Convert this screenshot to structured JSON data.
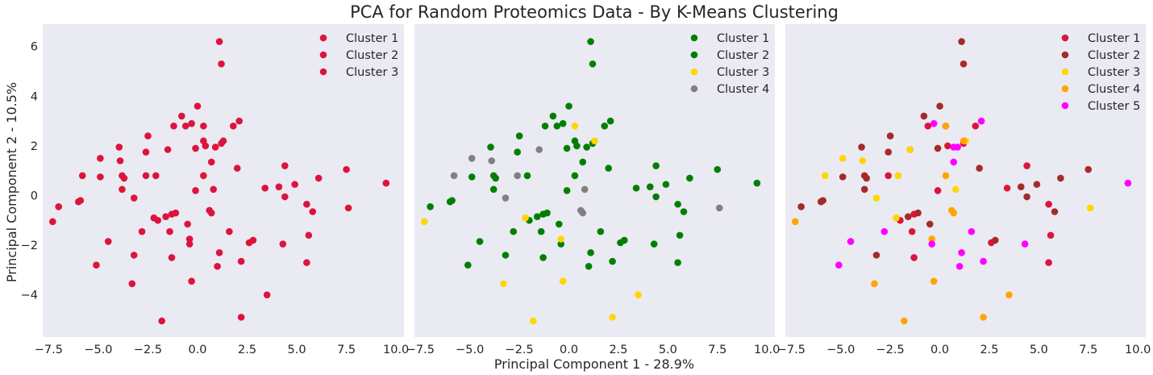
{
  "figure": {
    "suptitle": "PCA for Random Proteomics Data - By K-Means Clustering",
    "xlabel": "Principal Component 1 - 28.9%",
    "ylabel": "Principal Component 2 - 10.5%"
  },
  "colors": {
    "panel_background": "#eaeaf2",
    "text": "#262626"
  },
  "chart_data": [
    {
      "type": "scatter",
      "panel": 1,
      "xlim": [
        -7.8,
        10.4
      ],
      "ylim": [
        -5.7,
        6.9
      ],
      "xticks": [
        -7.5,
        -5.0,
        -2.5,
        0.0,
        2.5,
        5.0,
        7.5,
        10.0
      ],
      "yticks": [
        -4,
        -2,
        0,
        2,
        4,
        6
      ],
      "grid": false,
      "legend": "top-right",
      "series": [
        {
          "name": "Cluster 1",
          "color": "#dc143c",
          "points": [
            [
              1.1,
              6.2
            ],
            [
              1.2,
              5.3
            ],
            [
              0.0,
              3.6
            ],
            [
              -0.8,
              3.2
            ],
            [
              -2.5,
              2.4
            ],
            [
              -1.2,
              2.8
            ],
            [
              -0.3,
              2.9
            ],
            [
              -0.6,
              2.8
            ],
            [
              0.3,
              2.8
            ],
            [
              1.8,
              2.8
            ],
            [
              2.1,
              3.0
            ],
            [
              1.2,
              2.1
            ],
            [
              1.3,
              2.2
            ],
            [
              0.9,
              1.95
            ],
            [
              0.3,
              2.2
            ],
            [
              0.4,
              2.0
            ],
            [
              -0.1,
              1.9
            ],
            [
              0.7,
              1.35
            ],
            [
              -4.9,
              1.5
            ],
            [
              -2.6,
              1.75
            ],
            [
              -1.5,
              1.85
            ],
            [
              -3.95,
              1.95
            ],
            [
              -3.9,
              1.4
            ],
            [
              2.0,
              1.1
            ],
            [
              4.4,
              1.2
            ],
            [
              7.5,
              1.05
            ],
            [
              -5.8,
              0.8
            ],
            [
              -4.9,
              0.75
            ],
            [
              -2.6,
              0.8
            ],
            [
              -2.1,
              0.8
            ],
            [
              -3.8,
              0.8
            ],
            [
              -3.7,
              0.7
            ],
            [
              0.3,
              0.8
            ],
            [
              -0.1,
              0.2
            ],
            [
              0.8,
              0.25
            ],
            [
              3.4,
              0.3
            ],
            [
              4.1,
              0.35
            ],
            [
              4.9,
              0.45
            ],
            [
              6.1,
              0.7
            ],
            [
              9.5,
              0.5
            ],
            [
              -3.8,
              0.25
            ],
            [
              -3.2,
              -0.1
            ],
            [
              4.4,
              -0.05
            ],
            [
              -5.9,
              -0.2
            ],
            [
              -6.0,
              -0.25
            ],
            [
              -7.0,
              -0.45
            ],
            [
              -7.3,
              -1.05
            ],
            [
              5.5,
              -0.35
            ],
            [
              5.8,
              -0.65
            ],
            [
              7.6,
              -0.5
            ],
            [
              0.6,
              -0.6
            ],
            [
              0.7,
              -0.7
            ],
            [
              -1.1,
              -0.7
            ],
            [
              -1.3,
              -0.75
            ],
            [
              -2.2,
              -0.9
            ],
            [
              -2.0,
              -1.0
            ],
            [
              -1.6,
              -0.85
            ],
            [
              -0.5,
              -1.15
            ],
            [
              1.6,
              -1.45
            ],
            [
              2.8,
              -1.8
            ],
            [
              2.6,
              -1.9
            ],
            [
              -1.4,
              -1.45
            ],
            [
              -2.8,
              -1.45
            ],
            [
              -0.4,
              -1.75
            ],
            [
              -0.4,
              -1.95
            ],
            [
              -4.5,
              -1.85
            ],
            [
              4.3,
              -1.95
            ],
            [
              5.6,
              -1.6
            ],
            [
              -1.3,
              -2.5
            ],
            [
              -3.2,
              -2.4
            ],
            [
              1.1,
              -2.3
            ],
            [
              2.2,
              -2.65
            ],
            [
              5.5,
              -2.7
            ],
            [
              -5.1,
              -2.8
            ],
            [
              1.0,
              -2.85
            ],
            [
              -3.3,
              -3.55
            ],
            [
              -0.3,
              -3.45
            ],
            [
              3.5,
              -4.0
            ],
            [
              2.2,
              -4.9
            ],
            [
              -1.8,
              -5.05
            ]
          ]
        },
        {
          "name": "Cluster 2",
          "color": "#dc143c",
          "points": []
        },
        {
          "name": "Cluster 3",
          "color": "#dc143c",
          "points": []
        }
      ]
    },
    {
      "type": "scatter",
      "panel": 2,
      "xlim": [
        -7.8,
        10.4
      ],
      "ylim": [
        -5.7,
        6.9
      ],
      "xticks": [
        -7.5,
        -5.0,
        -2.5,
        0.0,
        2.5,
        5.0,
        7.5,
        10.0
      ],
      "yticks": [
        -4,
        -2,
        0,
        2,
        4,
        6
      ],
      "grid": false,
      "legend": "top-right",
      "series": [
        {
          "name": "Cluster 1",
          "color": "#008000",
          "points": [
            [
              1.1,
              6.2
            ],
            [
              1.2,
              5.3
            ],
            [
              0.0,
              3.6
            ],
            [
              -0.8,
              3.2
            ],
            [
              -2.5,
              2.4
            ],
            [
              -1.2,
              2.8
            ],
            [
              -0.3,
              2.9
            ],
            [
              -0.6,
              2.8
            ],
            [
              1.8,
              2.8
            ],
            [
              2.1,
              3.0
            ],
            [
              1.2,
              2.1
            ],
            [
              0.9,
              1.95
            ],
            [
              0.3,
              2.2
            ],
            [
              0.4,
              2.0
            ],
            [
              -0.1,
              1.9
            ],
            [
              0.7,
              1.35
            ],
            [
              -2.6,
              1.75
            ],
            [
              -3.95,
              1.95
            ],
            [
              2.0,
              1.1
            ],
            [
              4.4,
              1.2
            ],
            [
              7.5,
              1.05
            ],
            [
              -4.9,
              0.75
            ],
            [
              -2.1,
              0.8
            ],
            [
              -3.8,
              0.8
            ],
            [
              -3.7,
              0.7
            ],
            [
              0.3,
              0.8
            ],
            [
              -0.1,
              0.2
            ],
            [
              3.4,
              0.3
            ],
            [
              4.1,
              0.35
            ],
            [
              4.9,
              0.45
            ],
            [
              6.1,
              0.7
            ],
            [
              9.5,
              0.5
            ],
            [
              -3.8,
              0.25
            ],
            [
              4.4,
              -0.05
            ],
            [
              -5.9,
              -0.2
            ],
            [
              -6.0,
              -0.25
            ],
            [
              -7.0,
              -0.45
            ],
            [
              5.5,
              -0.35
            ],
            [
              5.8,
              -0.65
            ],
            [
              -1.1,
              -0.7
            ],
            [
              -1.3,
              -0.75
            ],
            [
              -2.0,
              -1.0
            ],
            [
              -1.6,
              -0.85
            ],
            [
              -0.5,
              -1.15
            ],
            [
              1.6,
              -1.45
            ],
            [
              2.8,
              -1.8
            ],
            [
              2.6,
              -1.9
            ],
            [
              -1.4,
              -1.45
            ],
            [
              -2.8,
              -1.45
            ],
            [
              -4.5,
              -1.85
            ],
            [
              4.3,
              -1.95
            ],
            [
              5.6,
              -1.6
            ],
            [
              -1.3,
              -2.5
            ],
            [
              -3.2,
              -2.4
            ],
            [
              1.1,
              -2.3
            ],
            [
              2.2,
              -2.65
            ],
            [
              5.5,
              -2.7
            ],
            [
              -5.1,
              -2.8
            ],
            [
              1.0,
              -2.85
            ],
            [
              -0.4,
              -1.95
            ]
          ]
        },
        {
          "name": "Cluster 2",
          "color": "#008000",
          "points": []
        },
        {
          "name": "Cluster 3",
          "color": "#ffd700",
          "points": [
            [
              0.3,
              2.8
            ],
            [
              1.3,
              2.2
            ],
            [
              -7.3,
              -1.05
            ],
            [
              -2.2,
              -0.9
            ],
            [
              -0.4,
              -1.75
            ],
            [
              -3.3,
              -3.55
            ],
            [
              -0.3,
              -3.45
            ],
            [
              3.5,
              -4.0
            ],
            [
              2.2,
              -4.9
            ],
            [
              -1.8,
              -5.05
            ]
          ]
        },
        {
          "name": "Cluster 4",
          "color": "#808080",
          "points": [
            [
              -4.9,
              1.5
            ],
            [
              -1.5,
              1.85
            ],
            [
              -3.9,
              1.4
            ],
            [
              -5.8,
              0.8
            ],
            [
              -2.6,
              0.8
            ],
            [
              0.8,
              0.25
            ],
            [
              -3.2,
              -0.1
            ],
            [
              7.6,
              -0.5
            ],
            [
              0.6,
              -0.6
            ],
            [
              0.7,
              -0.7
            ]
          ]
        }
      ]
    },
    {
      "type": "scatter",
      "panel": 3,
      "xlim": [
        -7.8,
        10.4
      ],
      "ylim": [
        -5.7,
        6.9
      ],
      "xticks": [
        -7.5,
        -5.0,
        -2.5,
        0.0,
        2.5,
        5.0,
        7.5,
        10.0
      ],
      "yticks": [
        -4,
        -2,
        0,
        2,
        4,
        6
      ],
      "grid": false,
      "legend": "top-right",
      "series": [
        {
          "name": "Cluster 1",
          "color": "#dc143c",
          "points": [
            [
              -0.6,
              2.8
            ],
            [
              0.3,
              2.8
            ],
            [
              1.8,
              2.8
            ],
            [
              1.2,
              2.1
            ],
            [
              -1.5,
              1.85
            ],
            [
              0.4,
              2.0
            ],
            [
              4.4,
              1.2
            ],
            [
              -2.6,
              0.8
            ],
            [
              -0.1,
              0.2
            ],
            [
              3.4,
              0.3
            ],
            [
              5.5,
              -0.35
            ],
            [
              -1.3,
              -0.75
            ],
            [
              -2.0,
              -1.0
            ],
            [
              2.6,
              -1.9
            ],
            [
              -1.4,
              -1.45
            ],
            [
              5.6,
              -1.6
            ],
            [
              -1.3,
              -2.5
            ],
            [
              5.5,
              -2.7
            ]
          ]
        },
        {
          "name": "Cluster 2",
          "color": "#a52a2a",
          "points": [
            [
              1.1,
              6.2
            ],
            [
              1.2,
              5.3
            ],
            [
              0.0,
              3.6
            ],
            [
              -0.8,
              3.2
            ],
            [
              -2.5,
              2.4
            ],
            [
              -3.95,
              1.95
            ],
            [
              -0.1,
              1.9
            ],
            [
              -2.6,
              1.75
            ],
            [
              2.0,
              1.1
            ],
            [
              7.5,
              1.05
            ],
            [
              -4.9,
              0.75
            ],
            [
              -3.8,
              0.8
            ],
            [
              -3.7,
              0.7
            ],
            [
              4.1,
              0.35
            ],
            [
              4.9,
              0.45
            ],
            [
              6.1,
              0.7
            ],
            [
              -3.8,
              0.25
            ],
            [
              -5.9,
              -0.2
            ],
            [
              -6.0,
              -0.25
            ],
            [
              -7.0,
              -0.45
            ],
            [
              4.4,
              -0.05
            ],
            [
              5.8,
              -0.65
            ],
            [
              -1.1,
              -0.7
            ],
            [
              -1.6,
              -0.85
            ],
            [
              -0.5,
              -1.15
            ],
            [
              2.8,
              -1.8
            ],
            [
              -3.2,
              -2.4
            ]
          ]
        },
        {
          "name": "Cluster 3",
          "color": "#ffd700",
          "points": [
            [
              1.3,
              2.2
            ],
            [
              -1.5,
              1.85
            ],
            [
              -4.9,
              1.5
            ],
            [
              -3.9,
              1.4
            ],
            [
              -5.8,
              0.8
            ],
            [
              -2.1,
              0.8
            ],
            [
              0.8,
              0.25
            ],
            [
              -3.2,
              -0.1
            ],
            [
              7.6,
              -0.5
            ],
            [
              -2.2,
              -0.9
            ]
          ]
        },
        {
          "name": "Cluster 4",
          "color": "#ffa500",
          "points": [
            [
              0.3,
              2.8
            ],
            [
              1.2,
              2.2
            ],
            [
              0.3,
              0.8
            ],
            [
              -7.3,
              -1.05
            ],
            [
              0.6,
              -0.6
            ],
            [
              0.7,
              -0.7
            ],
            [
              -0.4,
              -1.75
            ],
            [
              -3.3,
              -3.55
            ],
            [
              -0.3,
              -3.45
            ],
            [
              3.5,
              -4.0
            ],
            [
              2.2,
              -4.9
            ],
            [
              -1.8,
              -5.05
            ]
          ]
        },
        {
          "name": "Cluster 5",
          "color": "#ff00ff",
          "points": [
            [
              2.1,
              3.0
            ],
            [
              -0.3,
              2.9
            ],
            [
              0.9,
              1.95
            ],
            [
              0.7,
              1.35
            ],
            [
              9.5,
              0.5
            ],
            [
              -0.4,
              -1.95
            ],
            [
              1.6,
              -1.45
            ],
            [
              -2.8,
              -1.45
            ],
            [
              -4.5,
              -1.85
            ],
            [
              4.3,
              -1.95
            ],
            [
              1.1,
              -2.3
            ],
            [
              2.2,
              -2.65
            ],
            [
              -5.1,
              -2.8
            ],
            [
              1.0,
              -2.85
            ],
            [
              0.7,
              1.95
            ]
          ]
        }
      ]
    }
  ]
}
